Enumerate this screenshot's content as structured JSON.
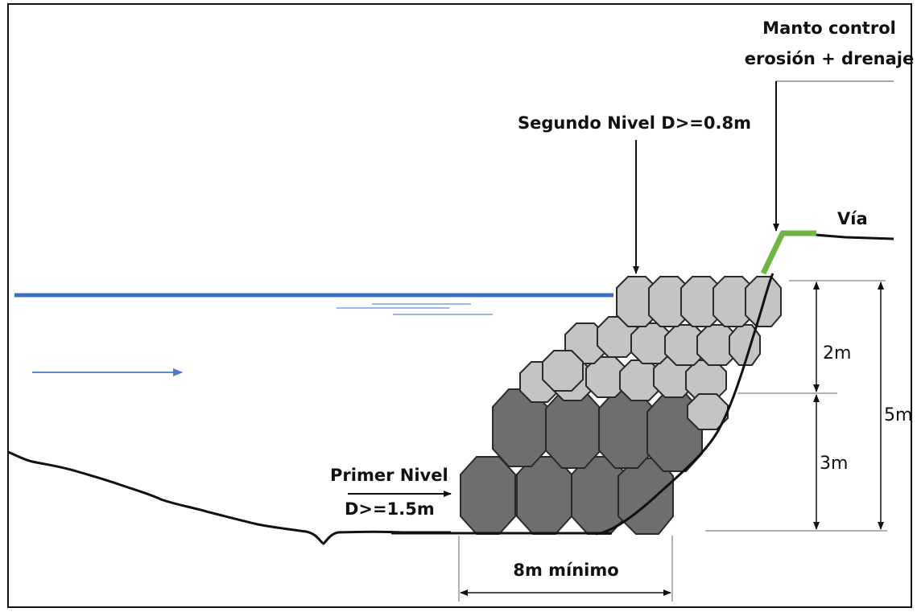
{
  "labels": {
    "manto_line1": "Manto control",
    "manto_line2": "erosión + drenaje",
    "segundo_nivel": "Segundo Nivel D>=0.8m",
    "via": "Vía",
    "primer_nivel_line1": "Primer Nivel",
    "primer_nivel_line2": "D>=1.5m",
    "dim_2m": "2m",
    "dim_3m": "3m",
    "dim_5m": "5m",
    "dim_8m": "8m mínimo"
  },
  "colors": {
    "water": "#3a6fc4",
    "water_light": "#9db8e6",
    "flow_arrow": "#5b85d6",
    "rock_dark": "#6e6e6e",
    "rock_light": "#c4c4c4",
    "erosion_mat": "#6fb544",
    "ground": "#111111"
  }
}
